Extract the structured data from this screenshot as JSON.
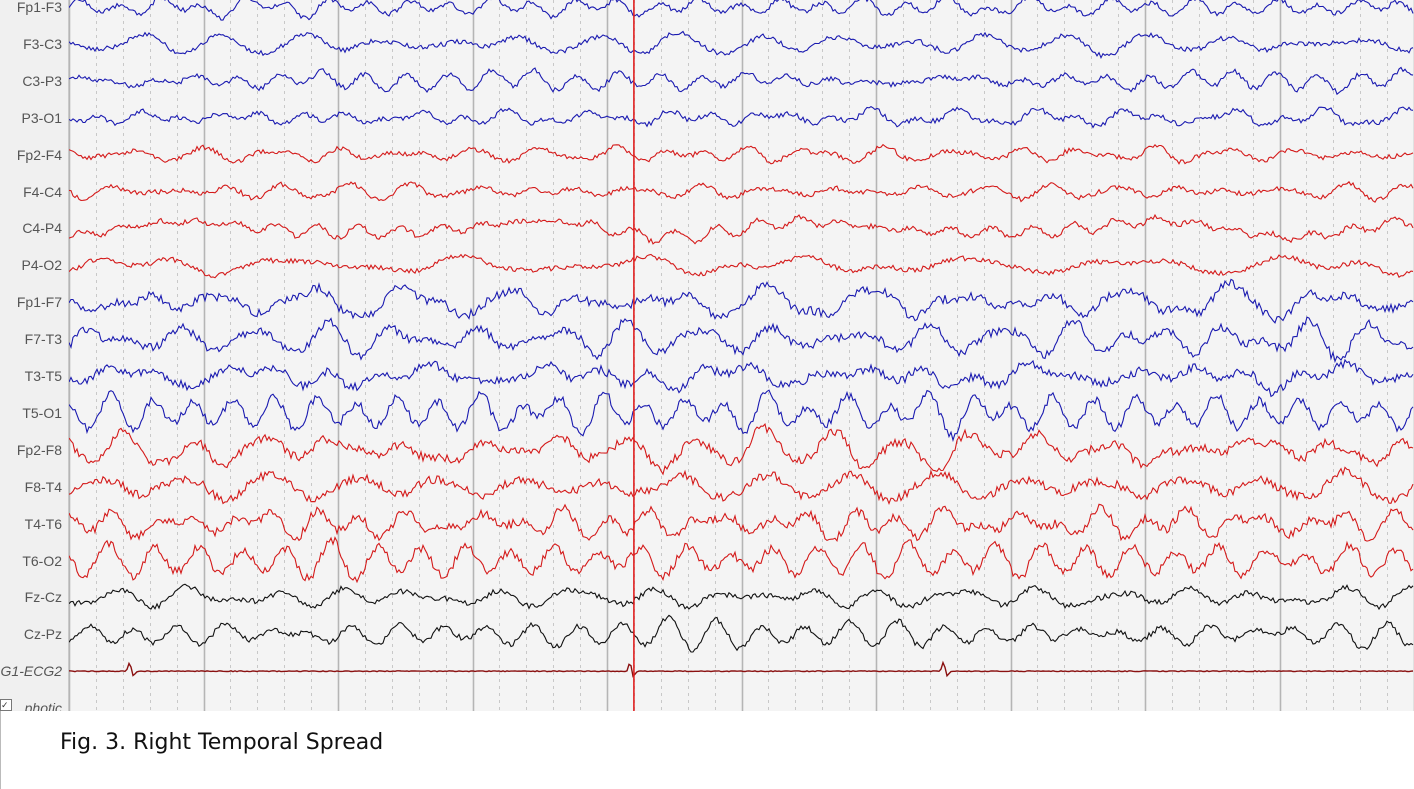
{
  "figure": {
    "caption": "Fig. 3. Right Temporal Spread"
  },
  "colors": {
    "left_chain": "#1a1ab0",
    "right_chain": "#d41a1a",
    "midline": "#111111",
    "ecg": "#8a1010",
    "marker": "#e02020",
    "grid_major": "#b5b5b5",
    "grid_minor": "#c8c8c8"
  },
  "chart_data": {
    "type": "line",
    "title": "",
    "xlabel": "",
    "ylabel": "",
    "grid": true,
    "channels": [
      {
        "label": "Fp1-F3",
        "color_group": "left"
      },
      {
        "label": "F3-C3",
        "color_group": "left"
      },
      {
        "label": "C3-P3",
        "color_group": "left"
      },
      {
        "label": "P3-O1",
        "color_group": "left"
      },
      {
        "label": "Fp2-F4",
        "color_group": "right"
      },
      {
        "label": "F4-C4",
        "color_group": "right"
      },
      {
        "label": "C4-P4",
        "color_group": "right"
      },
      {
        "label": "P4-O2",
        "color_group": "right"
      },
      {
        "label": "Fp1-F7",
        "color_group": "left"
      },
      {
        "label": "F7-T3",
        "color_group": "left"
      },
      {
        "label": "T3-T5",
        "color_group": "left"
      },
      {
        "label": "T5-O1",
        "color_group": "left"
      },
      {
        "label": "Fp2-F8",
        "color_group": "right"
      },
      {
        "label": "F8-T4",
        "color_group": "right"
      },
      {
        "label": "T4-T6",
        "color_group": "right"
      },
      {
        "label": "T6-O2",
        "color_group": "right"
      },
      {
        "label": "Fz-Cz",
        "color_group": "midline"
      },
      {
        "label": "Cz-Pz",
        "color_group": "midline"
      },
      {
        "label": "G1-ECG2",
        "color_group": "ecg"
      },
      {
        "label": "photic",
        "color_group": "none"
      }
    ],
    "ecg_beat_times_s": [
      0.45,
      4.17,
      6.5
    ],
    "epoch_seconds": 10,
    "marker_time_s": 4.2
  }
}
